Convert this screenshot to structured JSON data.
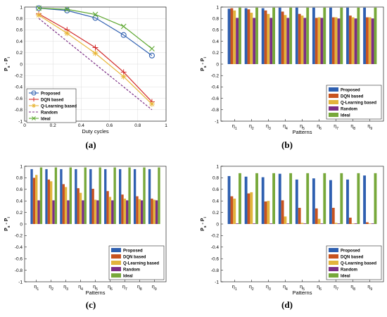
{
  "figure": {
    "captions": [
      "(a)",
      "(b)",
      "(c)",
      "(d)"
    ]
  },
  "colors": {
    "proposed": "#2e5fb0",
    "dqn": "#c8531f",
    "qlearning": "#e2b43c",
    "random": "#7b2e86",
    "ideal": "#77a83a",
    "line_dqn": "#d22b2b",
    "line_qlearning": "#e8b637",
    "line_ideal": "#5fa832"
  },
  "chart_data": [
    {
      "id": "a",
      "type": "line",
      "xlabel": "Duty cycles",
      "ylabel": "P_s - P_i",
      "xlim": [
        0,
        1
      ],
      "ylim": [
        -1,
        1
      ],
      "xticks": [
        "0",
        "0.2",
        "0.4",
        "0.6",
        "0.8",
        "1"
      ],
      "yticks": [
        "-1",
        "-0.8",
        "-0.6",
        "-0.4",
        "-0.2",
        "0",
        "0.2",
        "0.4",
        "0.6",
        "0.8",
        "1"
      ],
      "grid": true,
      "legend_position": "bottom-left",
      "series": [
        {
          "name": "Proposed",
          "marker": "circle",
          "x": [
            0.1,
            0.3,
            0.5,
            0.7,
            0.9
          ],
          "y": [
            0.98,
            0.94,
            0.81,
            0.51,
            0.15
          ]
        },
        {
          "name": "DQN based",
          "marker": "plus",
          "x": [
            0.1,
            0.3,
            0.5,
            0.7,
            0.9
          ],
          "y": [
            0.88,
            0.6,
            0.29,
            -0.14,
            -0.66
          ]
        },
        {
          "name": "Q-Learning based",
          "marker": "asterisk",
          "x": [
            0.1,
            0.3,
            0.5,
            0.7,
            0.9
          ],
          "y": [
            0.86,
            0.54,
            0.19,
            -0.22,
            -0.7
          ]
        },
        {
          "name": "Random",
          "marker": "none",
          "dash": true,
          "x": [
            0.1,
            0.9
          ],
          "y": [
            0.8,
            -0.8
          ]
        },
        {
          "name": "Ideal",
          "marker": "x",
          "x": [
            0.1,
            0.3,
            0.5,
            0.7,
            0.9
          ],
          "y": [
            0.98,
            0.96,
            0.87,
            0.66,
            0.27
          ]
        }
      ]
    },
    {
      "id": "b",
      "type": "bar",
      "xlabel": "Patterns",
      "ylabel": "P_s - P_i",
      "ylim": [
        -1,
        1
      ],
      "categories": [
        "η1",
        "η2",
        "η3",
        "η4",
        "η5",
        "η6",
        "η7",
        "η8",
        "η9"
      ],
      "yticks": [
        "-1",
        "-0.8",
        "-0.6",
        "-0.4",
        "-0.2",
        "0",
        "0.2",
        "0.4",
        "0.6",
        "0.8",
        "1"
      ],
      "legend_position": "bottom-right",
      "series": [
        {
          "name": "Proposed",
          "values": [
            0.97,
            0.98,
            0.98,
            0.99,
            0.99,
            0.99,
            0.99,
            0.99,
            0.99
          ]
        },
        {
          "name": "DQN based",
          "values": [
            0.98,
            0.96,
            0.94,
            0.92,
            0.88,
            0.81,
            0.82,
            0.85,
            0.82
          ]
        },
        {
          "name": "Q-Learning based",
          "values": [
            0.94,
            0.9,
            0.88,
            0.86,
            0.85,
            0.82,
            0.82,
            0.82,
            0.82
          ]
        },
        {
          "name": "Random",
          "values": [
            0.81,
            0.81,
            0.81,
            0.81,
            0.81,
            0.81,
            0.8,
            0.8,
            0.8
          ]
        },
        {
          "name": "Ideal",
          "values": [
            0.99,
            0.99,
            0.99,
            0.99,
            0.99,
            0.99,
            0.99,
            0.99,
            0.99
          ]
        }
      ]
    },
    {
      "id": "c",
      "type": "bar",
      "xlabel": "Patterns",
      "ylabel": "P_s - P_i",
      "ylim": [
        -1,
        1
      ],
      "categories": [
        "η1",
        "η2",
        "η3",
        "η4",
        "η5",
        "η6",
        "η7",
        "η8",
        "η9"
      ],
      "yticks": [
        "-1",
        "-0.8",
        "-0.6",
        "-0.4",
        "-0.2",
        "0",
        "0.2",
        "0.4",
        "0.6",
        "0.8",
        "1"
      ],
      "legend_position": "bottom-right",
      "series": [
        {
          "name": "Proposed",
          "values": [
            0.95,
            0.95,
            0.95,
            0.95,
            0.95,
            0.95,
            0.95,
            0.95,
            0.95
          ]
        },
        {
          "name": "DQN based",
          "values": [
            0.8,
            0.77,
            0.69,
            0.62,
            0.61,
            0.57,
            0.51,
            0.48,
            0.44
          ]
        },
        {
          "name": "Q-Learning based",
          "values": [
            0.85,
            0.74,
            0.64,
            0.54,
            0.42,
            0.47,
            0.44,
            0.43,
            0.42
          ]
        },
        {
          "name": "Random",
          "values": [
            0.41,
            0.41,
            0.41,
            0.41,
            0.41,
            0.41,
            0.41,
            0.41,
            0.41
          ]
        },
        {
          "name": "Ideal",
          "values": [
            0.98,
            0.98,
            0.98,
            0.98,
            0.98,
            0.98,
            0.98,
            0.98,
            0.98
          ]
        }
      ]
    },
    {
      "id": "d",
      "type": "bar",
      "xlabel": "Patterns",
      "ylabel": "P_s - P_i",
      "ylim": [
        -1,
        1
      ],
      "categories": [
        "η1",
        "η2",
        "η3",
        "η4",
        "η5",
        "η6",
        "η7",
        "η8",
        "η9"
      ],
      "yticks": [
        "-1",
        "-0.8",
        "-0.6",
        "-0.4",
        "-0.2",
        "0",
        "0.2",
        "0.4",
        "0.6",
        "0.8",
        "1"
      ],
      "legend_position": "bottom-right",
      "series": [
        {
          "name": "Proposed",
          "values": [
            0.83,
            0.82,
            0.81,
            0.87,
            0.77,
            0.79,
            0.76,
            0.77,
            0.84
          ]
        },
        {
          "name": "DQN based",
          "values": [
            0.48,
            0.53,
            0.39,
            0.41,
            0.28,
            0.27,
            0.28,
            0.11,
            0.03
          ]
        },
        {
          "name": "Q-Learning based",
          "values": [
            0.44,
            0.55,
            0.4,
            0.13,
            0.02,
            0.09,
            0.02,
            0.01,
            0.01
          ]
        },
        {
          "name": "Random",
          "values": [
            0.01,
            0.01,
            0.01,
            0.01,
            0.01,
            0.01,
            0.01,
            0.01,
            0.01
          ]
        },
        {
          "name": "Ideal",
          "values": [
            0.88,
            0.88,
            0.88,
            0.88,
            0.88,
            0.88,
            0.88,
            0.88,
            0.88
          ]
        }
      ]
    }
  ]
}
